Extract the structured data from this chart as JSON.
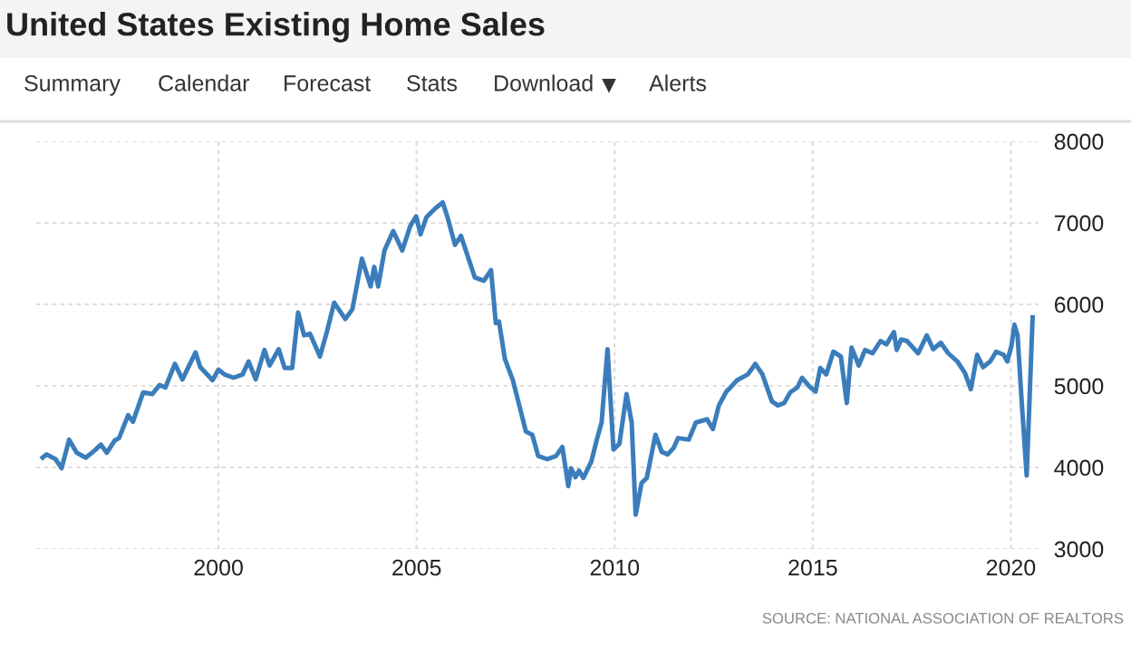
{
  "chart_data": {
    "type": "line",
    "title": "United States Existing Home Sales",
    "annotations": [
      "Summary",
      "Calendar",
      "Forecast",
      "Stats",
      "Download",
      "Alerts",
      "SOURCE: NATIONAL ASSOCIATION OF REALTORS"
    ],
    "series": [
      {
        "color": "#3b7dbb",
        "x": [
          1995.56,
          1995.66,
          1995.89,
          1996.04,
          1996.23,
          1996.42,
          1996.65,
          1996.88,
          1997.03,
          1997.18,
          1997.38,
          1997.49,
          1997.72,
          1997.84,
          1998.1,
          1998.33,
          1998.51,
          1998.66,
          1998.9,
          1999.09,
          1999.42,
          1999.54,
          1999.85,
          2000.0,
          2000.15,
          2000.38,
          2000.61,
          2000.76,
          2000.94,
          2001.16,
          2001.29,
          2001.52,
          2001.67,
          2001.86,
          2002.01,
          2002.16,
          2002.31,
          2002.56,
          2002.74,
          2002.92,
          2003.2,
          2003.38,
          2003.62,
          2003.84,
          2003.93,
          2004.03,
          2004.19,
          2004.41,
          2004.64,
          2004.84,
          2004.99,
          2005.1,
          2005.25,
          2005.48,
          2005.66,
          2005.78,
          2005.97,
          2006.12,
          2006.47,
          2006.7,
          2006.88,
          2007.0,
          2007.08,
          2007.23,
          2007.43,
          2007.76,
          2007.92,
          2008.07,
          2008.3,
          2008.52,
          2008.68,
          2008.83,
          2008.9,
          2009.01,
          2009.1,
          2009.21,
          2009.41,
          2009.56,
          2009.67,
          2009.82,
          2009.97,
          2010.12,
          2010.3,
          2010.43,
          2010.53,
          2010.68,
          2010.81,
          2011.03,
          2011.19,
          2011.34,
          2011.49,
          2011.6,
          2011.87,
          2012.05,
          2012.33,
          2012.48,
          2012.63,
          2012.82,
          2012.94,
          2013.09,
          2013.36,
          2013.55,
          2013.73,
          2013.97,
          2014.12,
          2014.28,
          2014.43,
          2014.61,
          2014.73,
          2014.92,
          2015.07,
          2015.19,
          2015.34,
          2015.52,
          2015.71,
          2015.86,
          2015.98,
          2016.16,
          2016.32,
          2016.51,
          2016.71,
          2016.86,
          2017.05,
          2017.12,
          2017.23,
          2017.38,
          2017.66,
          2017.88,
          2018.04,
          2018.23,
          2018.42,
          2018.65,
          2018.84,
          2018.99,
          2019.15,
          2019.3,
          2019.48,
          2019.63,
          2019.82,
          2019.91,
          2020.02,
          2020.09,
          2020.17,
          2020.27,
          2020.4,
          2020.55
        ],
        "values": [
          4120,
          4160,
          4100,
          3990,
          4340,
          4180,
          4120,
          4210,
          4280,
          4180,
          4330,
          4360,
          4640,
          4560,
          4920,
          4900,
          5010,
          4980,
          5270,
          5080,
          5410,
          5230,
          5070,
          5200,
          5140,
          5100,
          5140,
          5300,
          5080,
          5440,
          5250,
          5450,
          5220,
          5220,
          5900,
          5620,
          5640,
          5360,
          5670,
          6020,
          5820,
          5940,
          6560,
          6220,
          6460,
          6220,
          6660,
          6900,
          6660,
          6960,
          7080,
          6860,
          7070,
          7180,
          7250,
          7070,
          6730,
          6840,
          6330,
          6290,
          6420,
          5770,
          5790,
          5330,
          5070,
          4440,
          4400,
          4140,
          4100,
          4140,
          4250,
          3770,
          3990,
          3880,
          3960,
          3870,
          4070,
          4360,
          4550,
          5450,
          4220,
          4290,
          4900,
          4550,
          3420,
          3810,
          3870,
          4400,
          4190,
          4160,
          4240,
          4360,
          4340,
          4550,
          4590,
          4470,
          4760,
          4930,
          4990,
          5070,
          5140,
          5270,
          5140,
          4810,
          4760,
          4790,
          4920,
          4980,
          5100,
          4990,
          4930,
          5220,
          5140,
          5420,
          5360,
          4790,
          5470,
          5250,
          5440,
          5400,
          5550,
          5510,
          5660,
          5440,
          5570,
          5550,
          5400,
          5620,
          5450,
          5530,
          5400,
          5300,
          5160,
          4960,
          5380,
          5230,
          5300,
          5420,
          5380,
          5300,
          5500,
          5750,
          5620,
          4840,
          3900,
          5840
        ]
      }
    ],
    "xlim": [
      1995.4,
      2020.7
    ],
    "xticks": [
      2000,
      2005,
      2010,
      2015,
      2020
    ],
    "ylim": [
      3000,
      8000
    ],
    "yticks": [
      3000,
      4000,
      5000,
      6000,
      7000,
      8000
    ],
    "grid": true,
    "line_style": "solid",
    "marker": "none"
  }
}
